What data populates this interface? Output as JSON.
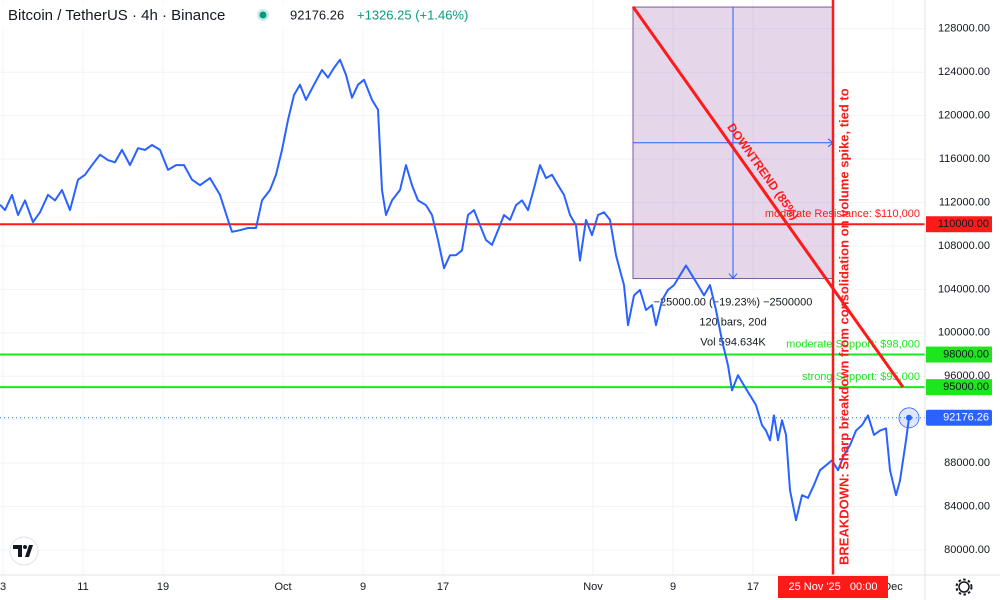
{
  "header": {
    "title": "Bitcoin / TetherUS · 4h · Binance",
    "change": "+1326.25 (+1.46%)"
  },
  "chart_data": {
    "type": "line",
    "x": [
      -0.3,
      0.2,
      0.9,
      1.5,
      2.2,
      3,
      3.7,
      4.5,
      5.2,
      5.9,
      6.7,
      7.5,
      8.2,
      8.9,
      9.7,
      10.5,
      11.2,
      11.9,
      12.7,
      13.5,
      14.2,
      14.9,
      15.7,
      16.5,
      17.3,
      18.1,
      18.9,
      19.7,
      20.7,
      21.7,
      22.5,
      22.9,
      23.7,
      24.5,
      25.3,
      25.9,
      26.7,
      27.3,
      27.9,
      28.5,
      29.1,
      29.7,
      30.3,
      31.1,
      31.9,
      32.5,
      33.1,
      33.7,
      34.3,
      34.9,
      35.5,
      36.1,
      36.9,
      37.5,
      37.9,
      38.3,
      38.9,
      39.7,
      40.3,
      40.9,
      41.5,
      42.3,
      42.9,
      43.5,
      44.1,
      44.7,
      45.3,
      45.9,
      46.5,
      47.1,
      47.7,
      48.3,
      48.9,
      49.5,
      50.1,
      50.7,
      51.3,
      51.9,
      52.5,
      53.1,
      53.7,
      54.3,
      54.9,
      55.5,
      56.1,
      56.7,
      57.3,
      57.7,
      58.3,
      58.9,
      59.5,
      60.1,
      60.7,
      61.3,
      61.7,
      62.1,
      62.5,
      63.1,
      63.7,
      64.3,
      64.9,
      65.3,
      65.9,
      66.5,
      67.1,
      67.7,
      68.3,
      68.9,
      69.5,
      70.1,
      70.7,
      71.3,
      71.9,
      72.5,
      72.9,
      73.5,
      74.1,
      74.7,
      75.3,
      75.9,
      76.3,
      76.7,
      77.1,
      77.5,
      77.9,
      78.3,
      78.7,
      79.3,
      79.9,
      80.5,
      81.1,
      81.7,
      82.3,
      82.9,
      83.5,
      84.1,
      84.7,
      85.3,
      85.9,
      86.5,
      87.1,
      87.7,
      88.3,
      88.7,
      89.3,
      89.7,
      90.3,
      90.6
    ],
    "series": [
      {
        "color": "#2962ff",
        "values": [
          111800,
          111300,
          112700,
          110850,
          112200,
          110200,
          111100,
          112700,
          112200,
          113150,
          111300,
          114100,
          114550,
          115450,
          116400,
          115900,
          115700,
          116850,
          115450,
          117000,
          116850,
          117300,
          116850,
          115000,
          115450,
          115450,
          114100,
          113600,
          114250,
          112700,
          110400,
          109300,
          109450,
          109650,
          109650,
          112200,
          113150,
          114550,
          116850,
          119600,
          121900,
          122850,
          121450,
          122850,
          124200,
          123500,
          124400,
          125150,
          123750,
          121650,
          122850,
          123300,
          121450,
          120550,
          113150,
          110850,
          112200,
          113150,
          115450,
          113600,
          112200,
          111750,
          110850,
          108550,
          105950,
          107150,
          107150,
          107600,
          110850,
          111300,
          109900,
          108550,
          108100,
          109450,
          110850,
          110400,
          111750,
          112200,
          111300,
          113300,
          115450,
          114250,
          114550,
          113600,
          112700,
          110850,
          109900,
          106650,
          110400,
          109000,
          110850,
          111100,
          110400,
          107150,
          105750,
          104400,
          100700,
          103450,
          103950,
          102100,
          102550,
          100700,
          103000,
          103950,
          104400,
          105300,
          106200,
          105300,
          104400,
          103450,
          104400,
          102100,
          99300,
          97000,
          94700,
          96100,
          95150,
          94250,
          93350,
          91500,
          91000,
          90100,
          92400,
          90100,
          91950,
          90600,
          85500,
          82750,
          85050,
          84800,
          86000,
          87350,
          87800,
          88250,
          87350,
          88750,
          89650,
          91000,
          91500,
          92400,
          90600,
          91000,
          91200,
          87350,
          85050,
          86400,
          90100,
          92176.26
        ]
      }
    ],
    "last_price": 92176.26,
    "xlim": [
      -0.3,
      92.2
    ],
    "ylim": [
      77700,
      130650
    ],
    "xticks": [
      {
        "value": 0,
        "label": "3"
      },
      {
        "value": 8,
        "label": "11"
      },
      {
        "value": 16,
        "label": "19"
      },
      {
        "value": 28,
        "label": "Oct"
      },
      {
        "value": 36,
        "label": "9"
      },
      {
        "value": 44,
        "label": "17"
      },
      {
        "value": 59,
        "label": "Nov"
      },
      {
        "value": 67,
        "label": "9"
      },
      {
        "value": 75,
        "label": "17"
      },
      {
        "value": 89,
        "label": "Dec"
      }
    ],
    "yticks": [
      {
        "value": 80000,
        "label": "80000.00"
      },
      {
        "value": 84000,
        "label": "84000.00"
      },
      {
        "value": 88000,
        "label": "88000.00"
      },
      {
        "value": 92000,
        "label": "92000.00"
      },
      {
        "value": 96000,
        "label": "96000.00"
      },
      {
        "value": 100000,
        "label": "100000.00"
      },
      {
        "value": 104000,
        "label": "104000.00"
      },
      {
        "value": 108000,
        "label": "108000.00"
      },
      {
        "value": 112000,
        "label": "112000.00"
      },
      {
        "value": 116000,
        "label": "116000.00"
      },
      {
        "value": 120000,
        "label": "120000.00"
      },
      {
        "value": 124000,
        "label": "124000.00"
      },
      {
        "value": 128000,
        "label": "128000.00"
      }
    ],
    "grid": true,
    "levels": [
      {
        "value": 110000,
        "label": "moderate Resistance: $110,000",
        "tag": "110000.00",
        "color": "#ff1a1a"
      },
      {
        "value": 98000,
        "label": "moderate Support: $98,000",
        "tag": "98000.00",
        "color": "#1ee61e"
      },
      {
        "value": 95000,
        "label": "strong Support: $95,000",
        "tag": "95000.00",
        "color": "#1ee61e"
      }
    ],
    "trendline": {
      "label": "DOWNTREND (85%)",
      "x": [
        63,
        90
      ],
      "y": [
        130030,
        95000
      ],
      "color": "#ff1a1a"
    },
    "event": {
      "x": 83,
      "label": "BREAKDOWN: Sharp breakdown from consolidation on volume spike, tied to",
      "time_label": "25 Nov '25   00:00",
      "color": "#ff1a1a"
    },
    "measure": {
      "x": [
        63,
        83
      ],
      "y": [
        130000,
        105000
      ],
      "lines": [
        "−25000.00 (−19.23%) −2500000",
        "120 bars, 20d",
        "Vol 594.634K"
      ]
    }
  }
}
